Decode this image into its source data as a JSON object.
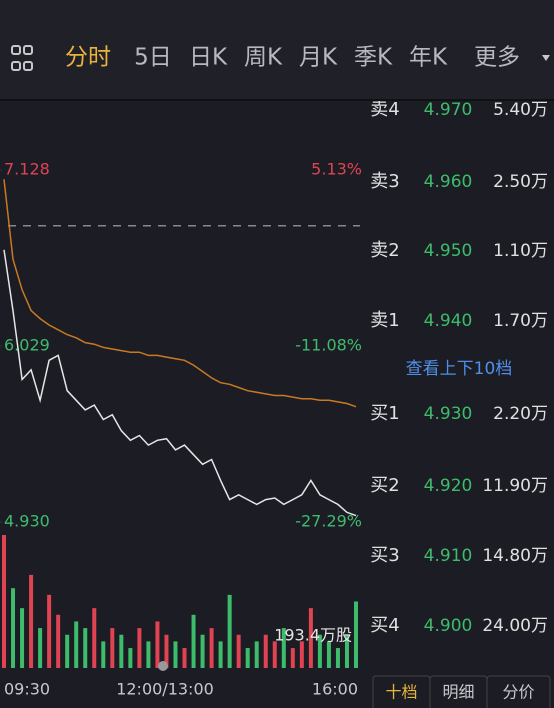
{
  "tabs": {
    "items": [
      "分时",
      "5日",
      "日K",
      "周K",
      "月K",
      "季K",
      "年K",
      "更多"
    ],
    "active": 0
  },
  "chart": {
    "ylim": [
      4.93,
      7.128
    ],
    "yticks": [
      7.128,
      6.029,
      {
        "value": 4.93,
        "label": "4.930"
      }
    ],
    "pct_ticks": [
      "5.13%",
      "-11.08%",
      "-27.29%"
    ],
    "reference": 6.78,
    "price": [
      6.63,
      6.25,
      5.82,
      5.88,
      5.69,
      5.94,
      5.97,
      5.75,
      5.69,
      5.63,
      5.66,
      5.57,
      5.6,
      5.5,
      5.44,
      5.47,
      5.41,
      5.44,
      5.45,
      5.38,
      5.41,
      5.35,
      5.29,
      5.32,
      5.19,
      5.07,
      5.1,
      5.07,
      5.04,
      5.07,
      5.08,
      5.04,
      5.07,
      5.1,
      5.19,
      5.1,
      5.07,
      5.04,
      4.99,
      4.97
    ],
    "average": [
      7.07,
      6.57,
      6.38,
      6.25,
      6.2,
      6.16,
      6.13,
      6.1,
      6.08,
      6.05,
      6.04,
      6.02,
      6.01,
      6.0,
      5.99,
      5.99,
      5.97,
      5.97,
      5.96,
      5.95,
      5.94,
      5.91,
      5.87,
      5.83,
      5.8,
      5.79,
      5.77,
      5.75,
      5.74,
      5.73,
      5.72,
      5.72,
      5.71,
      5.7,
      5.7,
      5.69,
      5.69,
      5.68,
      5.67,
      5.65
    ],
    "volume": [
      100,
      60,
      45,
      70,
      30,
      55,
      40,
      25,
      35,
      30,
      45,
      20,
      30,
      25,
      15,
      30,
      20,
      35,
      25,
      20,
      15,
      40,
      25,
      30,
      20,
      55,
      25,
      15,
      20,
      25,
      20,
      30,
      15,
      20,
      45,
      25,
      20,
      15,
      25,
      50
    ],
    "volume_lim": [
      0,
      100
    ],
    "volume_label": "193.4万股",
    "times": [
      "09:30",
      "12:00/13:00",
      "16:00"
    ]
  },
  "order_book": {
    "asks": [
      {
        "label": "卖4",
        "price": "4.970",
        "volume": "5.40万"
      },
      {
        "label": "卖3",
        "price": "4.960",
        "volume": "2.50万"
      },
      {
        "label": "卖2",
        "price": "4.950",
        "volume": "1.10万"
      },
      {
        "label": "卖1",
        "price": "4.940",
        "volume": "1.70万"
      }
    ],
    "more": "查看上下10档",
    "bids": [
      {
        "label": "买1",
        "price": "4.930",
        "volume": "2.20万"
      },
      {
        "label": "买2",
        "price": "4.920",
        "volume": "11.90万"
      },
      {
        "label": "买3",
        "price": "4.910",
        "volume": "14.80万"
      },
      {
        "label": "买4",
        "price": "4.900",
        "volume": "24.00万"
      }
    ]
  },
  "bottom_tabs": {
    "items": [
      "十档",
      "明细",
      "分价"
    ],
    "active": 0
  }
}
